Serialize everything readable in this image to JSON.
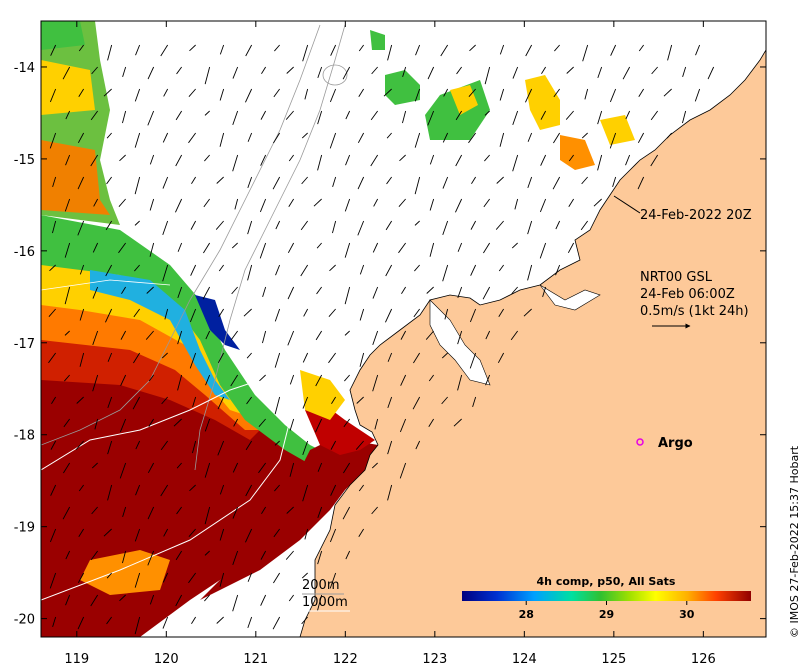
{
  "map": {
    "lon_range": [
      118.6,
      126.7
    ],
    "lat_range": [
      -20.2,
      -13.5
    ],
    "x_ticks": [
      "119",
      "120",
      "121",
      "122",
      "123",
      "124",
      "125",
      "126"
    ],
    "x_tick_values": [
      119,
      120,
      121,
      122,
      123,
      124,
      125,
      126
    ],
    "y_ticks": [
      "-14",
      "-15",
      "-16",
      "-17",
      "-18",
      "-19",
      "-20"
    ],
    "y_tick_values": [
      -14,
      -15,
      -16,
      -17,
      -18,
      -19,
      -20
    ]
  },
  "annotations": {
    "pass_time": "24-Feb-2022 20Z",
    "current_product": "NRT00 GSL",
    "current_time": "24-Feb 06:00Z",
    "scale_label": "0.5m/s (1kt 24h)",
    "argo_label": "Argo",
    "isobath_200": "200m",
    "isobath_1000": "1000m",
    "credit": "© IMOS 27-Feb-2022 15:37 Hobart"
  },
  "colorbar": {
    "title": "4h comp, p50, All Sats",
    "ticks": [
      "28",
      "29",
      "30"
    ],
    "tick_values": [
      28,
      29,
      30
    ],
    "range": [
      27.2,
      30.8
    ]
  },
  "colors": {
    "land": "#fdc999",
    "sea_cloud": "#ffffff",
    "argo_marker": "#e600e6",
    "isobath": "#9a9a9a"
  }
}
